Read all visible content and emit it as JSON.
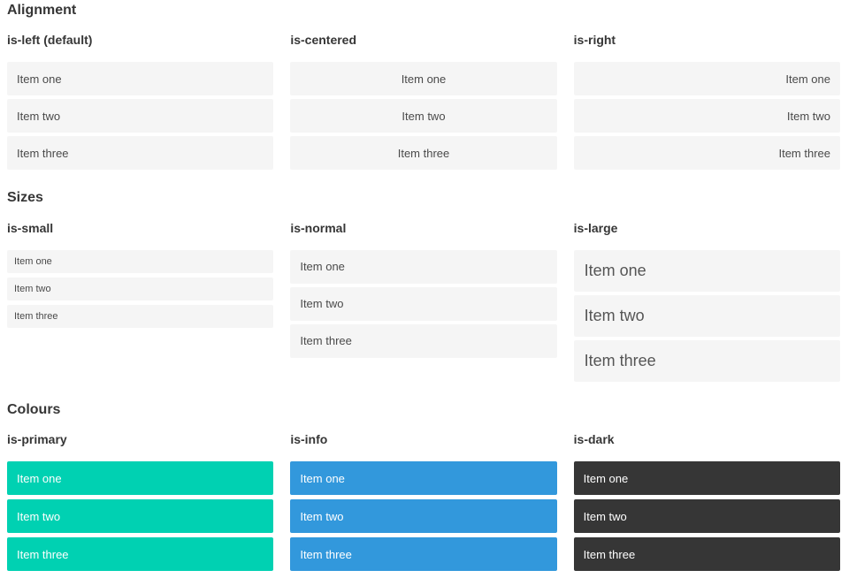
{
  "sections": [
    {
      "title": "Alignment",
      "columns": [
        {
          "heading": "is-left (default)",
          "modifier": "is-left",
          "items": [
            "Item one",
            "Item two",
            "Item three"
          ]
        },
        {
          "heading": "is-centered",
          "modifier": "is-centered",
          "items": [
            "Item one",
            "Item two",
            "Item three"
          ]
        },
        {
          "heading": "is-right",
          "modifier": "is-right",
          "items": [
            "Item one",
            "Item two",
            "Item three"
          ]
        }
      ]
    },
    {
      "title": "Sizes",
      "columns": [
        {
          "heading": "is-small",
          "modifier": "is-small",
          "items": [
            "Item one",
            "Item two",
            "Item three"
          ]
        },
        {
          "heading": "is-normal",
          "modifier": "is-normal",
          "items": [
            "Item one",
            "Item two",
            "Item three"
          ]
        },
        {
          "heading": "is-large",
          "modifier": "is-large",
          "items": [
            "Item one",
            "Item two",
            "Item three"
          ]
        }
      ]
    },
    {
      "title": "Colours",
      "columns": [
        {
          "heading": "is-primary",
          "modifier": "is-primary",
          "items": [
            "Item one",
            "Item two",
            "Item three"
          ]
        },
        {
          "heading": "is-info",
          "modifier": "is-info",
          "items": [
            "Item one",
            "Item two",
            "Item three"
          ]
        },
        {
          "heading": "is-dark",
          "modifier": "is-dark",
          "items": [
            "Item one",
            "Item two",
            "Item three"
          ]
        }
      ]
    }
  ],
  "colors": {
    "primary": "#00d1b2",
    "info": "#3298dc",
    "dark": "#363636",
    "item_background": "#f5f5f5",
    "item_text": "#4a4a4a",
    "heading_text": "#363636",
    "colored_item_text": "#ffffff"
  }
}
